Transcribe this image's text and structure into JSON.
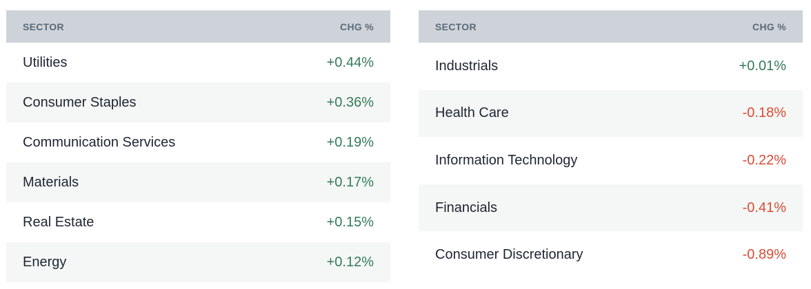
{
  "colors": {
    "page_bg": "#ffffff",
    "header_bg": "#ced3da",
    "header_text": "#5a6a78",
    "row_text": "#1e2433",
    "row_alt_bg": "#f4f7f5",
    "positive": "#347a58",
    "negative": "#d94a35"
  },
  "tables": [
    {
      "name": "sector-performance-advancers",
      "headers": {
        "sector": "SECTOR",
        "change": "CHG %"
      },
      "rows": [
        {
          "sector": "Utilities",
          "change": "+0.44%",
          "direction": "positive"
        },
        {
          "sector": "Consumer Staples",
          "change": "+0.36%",
          "direction": "positive"
        },
        {
          "sector": "Communication Services",
          "change": "+0.19%",
          "direction": "positive"
        },
        {
          "sector": "Materials",
          "change": "+0.17%",
          "direction": "positive"
        },
        {
          "sector": "Real Estate",
          "change": "+0.15%",
          "direction": "positive"
        },
        {
          "sector": "Energy",
          "change": "+0.12%",
          "direction": "positive"
        }
      ]
    },
    {
      "name": "sector-performance-decliners",
      "headers": {
        "sector": "SECTOR",
        "change": "CHG %"
      },
      "rows": [
        {
          "sector": "Industrials",
          "change": "+0.01%",
          "direction": "positive"
        },
        {
          "sector": "Health Care",
          "change": "-0.18%",
          "direction": "negative"
        },
        {
          "sector": "Information Technology",
          "change": "-0.22%",
          "direction": "negative"
        },
        {
          "sector": "Financials",
          "change": "-0.41%",
          "direction": "negative"
        },
        {
          "sector": "Consumer Discretionary",
          "change": "-0.89%",
          "direction": "negative"
        }
      ]
    }
  ]
}
